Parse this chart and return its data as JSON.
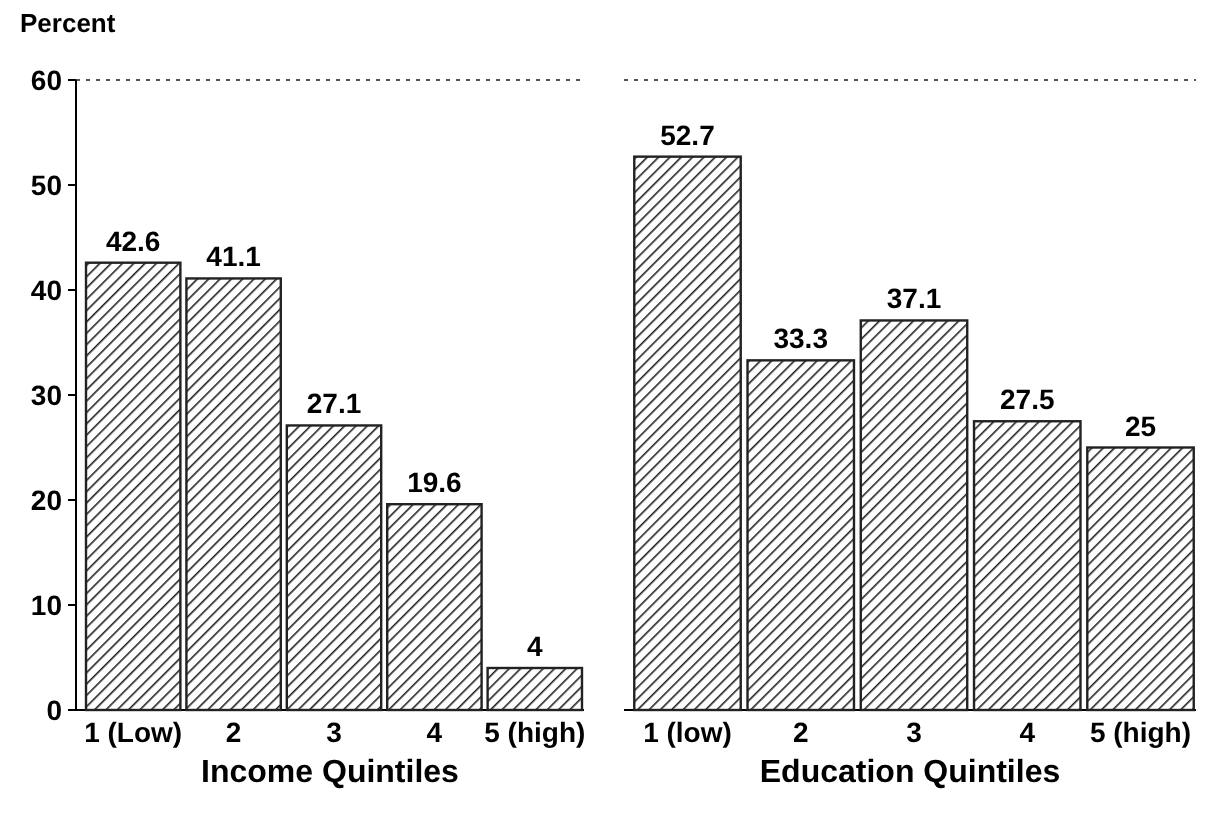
{
  "chart_data": [
    {
      "type": "bar",
      "ylabel": "Percent",
      "xlabel": "Income Quintiles",
      "categories": [
        "1 (Low)",
        "2",
        "3",
        "4",
        "5 (high)"
      ],
      "values": [
        42.6,
        41.1,
        27.1,
        19.6,
        4
      ],
      "color": "#222222",
      "ylim": [
        0,
        60
      ],
      "yticks": [
        0,
        10,
        20,
        30,
        40,
        50,
        60
      ],
      "data_labels": true
    },
    {
      "type": "bar",
      "xlabel": "Education Quintiles",
      "categories": [
        "1 (low)",
        "2",
        "3",
        "4",
        "5 (high)"
      ],
      "values": [
        52.7,
        33.3,
        37.1,
        27.5,
        25
      ],
      "color": "#222222",
      "ylim": [
        0,
        60
      ],
      "data_labels": true,
      "tick_labels": "x"
    }
  ]
}
